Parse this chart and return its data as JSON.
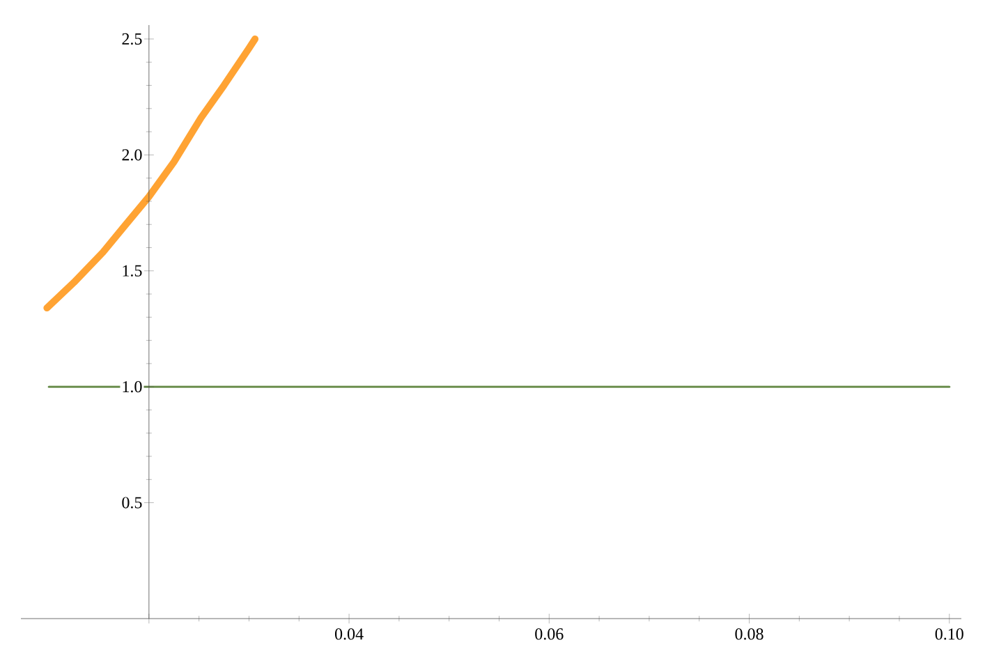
{
  "chart_data": {
    "type": "line",
    "series": [
      {
        "x": [
          0.0098,
          0.0125,
          0.0154,
          0.0175,
          0.02,
          0.0225,
          0.0252,
          0.0275,
          0.03,
          0.0306
        ],
        "values": [
          1.34,
          1.45,
          1.58,
          1.69,
          1.82,
          1.97,
          2.16,
          2.3,
          2.46,
          2.5
        ],
        "color": "#ffa333"
      },
      {
        "x": [
          0.01,
          0.1
        ],
        "values": [
          1,
          1
        ],
        "color": "#6b8e4e"
      }
    ],
    "xlim": [
      0.0072,
      0.1012
    ],
    "ylim": [
      0,
      2.56
    ],
    "xticks": [
      {
        "value": 0.02,
        "label": null
      },
      0.04,
      0.06,
      0.08,
      {
        "value": 0.1,
        "label": "0.10"
      }
    ],
    "yticks": [
      {
        "value": 0.5,
        "label": "0.5"
      },
      {
        "value": 1,
        "label": "1.0"
      },
      {
        "value": 1.5,
        "label": "1.5"
      },
      {
        "value": 2,
        "label": "2.0"
      },
      {
        "value": 2.5,
        "label": "2.5"
      }
    ],
    "marker": "none",
    "line_style": "solid"
  }
}
